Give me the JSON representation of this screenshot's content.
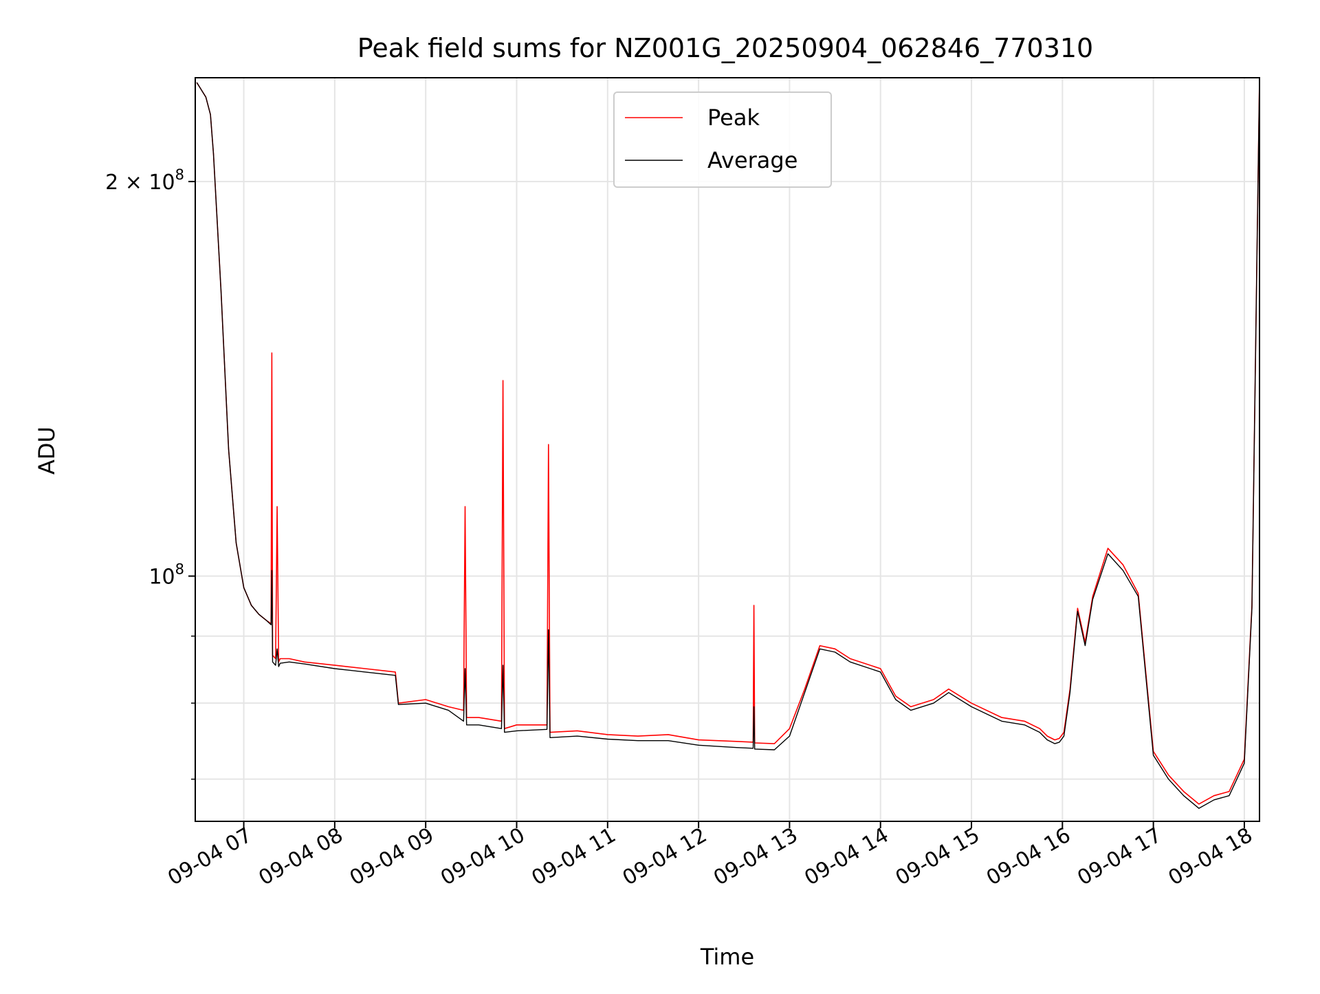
{
  "chart_data": {
    "type": "line",
    "title": "Peak field sums for NZ001G_20250904_062846_770310",
    "xlabel": "Time",
    "ylabel": "ADU",
    "y_scale": "log",
    "grid": true,
    "legend_position": "upper center",
    "x_range": [
      "2025-09-04 06:28",
      "2025-09-04 18:10"
    ],
    "y_range": [
      65000000,
      240000000
    ],
    "x_ticks": [
      "09-04 07",
      "09-04 08",
      "09-04 09",
      "09-04 10",
      "09-04 11",
      "09-04 12",
      "09-04 13",
      "09-04 14",
      "09-04 15",
      "09-04 16",
      "09-04 17",
      "09-04 18"
    ],
    "y_ticks": [
      {
        "value": 100000000,
        "base": "10",
        "exponent": "8"
      },
      {
        "value": 200000000,
        "base": "2 × 10",
        "exponent": "8"
      }
    ],
    "y_minor_ticks": [
      70000000,
      80000000,
      90000000
    ],
    "series": [
      {
        "name": "Peak",
        "color": "#ff0000",
        "x_time": [
          "06:29",
          "06:35",
          "06:38",
          "06:40",
          "06:45",
          "06:50",
          "06:55",
          "07:00",
          "07:05",
          "07:10",
          "07:15",
          "07:18",
          "07:18.5",
          "07:19",
          "07:21",
          "07:22",
          "07:23",
          "07:24",
          "07:30",
          "07:40",
          "08:00",
          "08:20",
          "08:40",
          "08:42",
          "09:00",
          "09:15",
          "09:25",
          "09:26",
          "09:27",
          "09:35",
          "09:50",
          "09:51",
          "09:52",
          "10:00",
          "10:20",
          "10:21",
          "10:22",
          "10:40",
          "11:00",
          "11:20",
          "11:40",
          "12:00",
          "12:25",
          "12:36",
          "12:36.5",
          "12:37",
          "12:50",
          "13:00",
          "13:10",
          "13:20",
          "13:30",
          "13:40",
          "14:00",
          "14:10",
          "14:20",
          "14:35",
          "14:45",
          "15:00",
          "15:20",
          "15:35",
          "15:45",
          "15:50",
          "15:55",
          "15:58",
          "16:01",
          "16:05",
          "16:10",
          "16:15",
          "16:20",
          "16:30",
          "16:40",
          "16:50",
          "17:00",
          "17:10",
          "17:20",
          "17:30",
          "17:40",
          "17:50",
          "18:00",
          "18:05",
          "18:10"
        ],
        "values": [
          238000000,
          232000000,
          225000000,
          210000000,
          165000000,
          125000000,
          106000000,
          98000000,
          95000000,
          93500000,
          92500000,
          92000000,
          148000000,
          87000000,
          86500000,
          113000000,
          86000000,
          86500000,
          86500000,
          86000000,
          85500000,
          85000000,
          84500000,
          80000000,
          80500000,
          79500000,
          79000000,
          113000000,
          78000000,
          78000000,
          77500000,
          141000000,
          76500000,
          77000000,
          77000000,
          126000000,
          76000000,
          76200000,
          75700000,
          75500000,
          75700000,
          75000000,
          74800000,
          74700000,
          95000000,
          74600000,
          74500000,
          76500000,
          82000000,
          88500000,
          88000000,
          86500000,
          85000000,
          81000000,
          79500000,
          80500000,
          82000000,
          80000000,
          78000000,
          77500000,
          76500000,
          75500000,
          75000000,
          75200000,
          76000000,
          82000000,
          94500000,
          89000000,
          96500000,
          105000000,
          102000000,
          97000000,
          73500000,
          70500000,
          68500000,
          67000000,
          68000000,
          68500000,
          72500000,
          95000000,
          240000000
        ]
      },
      {
        "name": "Average",
        "color": "#000000",
        "x_time": [
          "06:29",
          "06:35",
          "06:38",
          "06:40",
          "06:45",
          "06:50",
          "06:55",
          "07:00",
          "07:05",
          "07:10",
          "07:15",
          "07:18",
          "07:18.5",
          "07:19",
          "07:21",
          "07:22",
          "07:23",
          "07:24",
          "07:30",
          "07:40",
          "08:00",
          "08:20",
          "08:40",
          "08:42",
          "09:00",
          "09:15",
          "09:25",
          "09:26",
          "09:27",
          "09:35",
          "09:50",
          "09:51",
          "09:52",
          "10:00",
          "10:20",
          "10:21",
          "10:22",
          "10:40",
          "11:00",
          "11:20",
          "11:40",
          "12:00",
          "12:25",
          "12:36",
          "12:36.5",
          "12:37",
          "12:50",
          "13:00",
          "13:10",
          "13:20",
          "13:30",
          "13:40",
          "14:00",
          "14:10",
          "14:20",
          "14:35",
          "14:45",
          "15:00",
          "15:20",
          "15:35",
          "15:45",
          "15:50",
          "15:55",
          "15:58",
          "16:01",
          "16:05",
          "16:10",
          "16:15",
          "16:20",
          "16:30",
          "16:40",
          "16:50",
          "17:00",
          "17:10",
          "17:20",
          "17:30",
          "17:40",
          "17:50",
          "18:00",
          "18:05",
          "18:10"
        ],
        "values": [
          238000000,
          232000000,
          225000000,
          210000000,
          165000000,
          125000000,
          106000000,
          98000000,
          95000000,
          93500000,
          92500000,
          91800000,
          101000000,
          86000000,
          85500000,
          88000000,
          85300000,
          85800000,
          86000000,
          85700000,
          85000000,
          84500000,
          84000000,
          79800000,
          80000000,
          79000000,
          77500000,
          85000000,
          77000000,
          77000000,
          76500000,
          85500000,
          76000000,
          76200000,
          76400000,
          91000000,
          75300000,
          75500000,
          75100000,
          74900000,
          74900000,
          74300000,
          74000000,
          73900000,
          79500000,
          73800000,
          73700000,
          75500000,
          81500000,
          88000000,
          87500000,
          86000000,
          84500000,
          80500000,
          79000000,
          80000000,
          81500000,
          79500000,
          77500000,
          77000000,
          76000000,
          75000000,
          74500000,
          74700000,
          75500000,
          81500000,
          94000000,
          88500000,
          96000000,
          104000000,
          101000000,
          96500000,
          73000000,
          70000000,
          68000000,
          66500000,
          67500000,
          68000000,
          72000000,
          94500000,
          240000000
        ]
      }
    ]
  }
}
